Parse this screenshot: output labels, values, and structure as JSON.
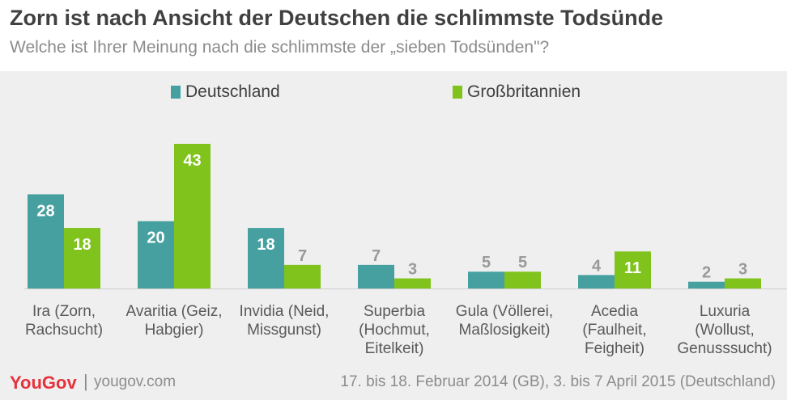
{
  "header": {
    "title": "Zorn ist nach Ansicht der Deutschen die schlimmste Todsünde",
    "subtitle": "Welche ist Ihrer Meinung nach die schlimmste der „sieben Todsünden\"?"
  },
  "colors": {
    "deutschland": "#46a0a0",
    "grossbritannien": "#7fc31c",
    "label_inside": "#ffffff",
    "label_outside": "#999999",
    "brand": "#e6323c"
  },
  "chart_data": {
    "type": "bar",
    "title": "Zorn ist nach Ansicht der Deutschen die schlimmste Todsünde",
    "subtitle": "Welche ist Ihrer Meinung nach die schlimmste der „sieben Todsünden\"?",
    "categories": [
      "Ira (Zorn, Rachsucht)",
      "Avaritia (Geiz, Habgier)",
      "Invidia (Neid, Missgunst)",
      "Superbia (Hochmut, Eitelkeit)",
      "Gula (Völlerei, Maßlosigkeit)",
      "Acedia (Faulheit, Feigheit)",
      "Luxuria (Wollust, Genusssucht)"
    ],
    "category_lines": [
      [
        "Ira (Zorn,",
        "Rachsucht)"
      ],
      [
        "Avaritia (Geiz,",
        "Habgier)"
      ],
      [
        "Invidia (Neid,",
        "Missgunst)"
      ],
      [
        "Superbia",
        "(Hochmut,",
        "Eitelkeit)"
      ],
      [
        "Gula (Völlerei,",
        "Maßlosigkeit)"
      ],
      [
        "Acedia",
        "(Faulheit,",
        "Feigheit)"
      ],
      [
        "Luxuria",
        "(Wollust,",
        "Genusssucht)"
      ]
    ],
    "series": [
      {
        "name": "Deutschland",
        "values": [
          28,
          20,
          18,
          7,
          5,
          4,
          2
        ]
      },
      {
        "name": "Großbritannien",
        "values": [
          18,
          43,
          7,
          3,
          5,
          11,
          3
        ]
      }
    ],
    "ylim": [
      0,
      43
    ],
    "legend": "top",
    "grid": false
  },
  "legend": [
    {
      "label": "Deutschland"
    },
    {
      "label": "Großbritannien"
    }
  ],
  "footer": {
    "logo": "YouGov",
    "separator": "|",
    "site": "yougov.com",
    "date": "17. bis 18. Februar 2014 (GB), 3. bis 7 April 2015 (Deutschland)"
  }
}
